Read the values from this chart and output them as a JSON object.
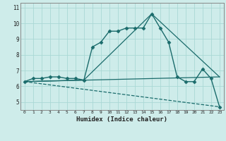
{
  "xlabel": "Humidex (Indice chaleur)",
  "ylabel": "",
  "bg_color": "#ceecea",
  "line_color": "#1a6b6b",
  "grid_color": "#aad8d5",
  "xlim": [
    -0.5,
    23.5
  ],
  "ylim": [
    4.5,
    11.3
  ],
  "xticks": [
    0,
    1,
    2,
    3,
    4,
    5,
    6,
    7,
    8,
    9,
    10,
    11,
    12,
    13,
    14,
    15,
    16,
    17,
    18,
    19,
    20,
    21,
    22,
    23
  ],
  "yticks": [
    5,
    6,
    7,
    8,
    9,
    10,
    11
  ],
  "series": [
    {
      "x": [
        0,
        1,
        2,
        3,
        4,
        5,
        6,
        7,
        8,
        9,
        10,
        11,
        12,
        13,
        14,
        15,
        16,
        17,
        18,
        19,
        20,
        21,
        22,
        23
      ],
      "y": [
        6.3,
        6.5,
        6.5,
        6.6,
        6.6,
        6.5,
        6.5,
        6.4,
        8.5,
        8.8,
        9.5,
        9.5,
        9.7,
        9.7,
        9.7,
        10.6,
        9.7,
        8.8,
        6.6,
        6.3,
        6.3,
        7.1,
        6.5,
        4.7
      ],
      "marker": "D",
      "markersize": 2.5,
      "linewidth": 1.0,
      "linestyle": "-"
    },
    {
      "x": [
        0,
        23
      ],
      "y": [
        6.3,
        6.6
      ],
      "marker": null,
      "markersize": 0,
      "linewidth": 0.9,
      "linestyle": "-"
    },
    {
      "x": [
        0,
        23
      ],
      "y": [
        6.3,
        4.7
      ],
      "marker": null,
      "markersize": 0,
      "linewidth": 0.9,
      "linestyle": "--"
    },
    {
      "x": [
        0,
        7,
        15,
        23
      ],
      "y": [
        6.3,
        6.4,
        10.6,
        6.6
      ],
      "marker": null,
      "markersize": 0,
      "linewidth": 0.9,
      "linestyle": "-"
    }
  ]
}
